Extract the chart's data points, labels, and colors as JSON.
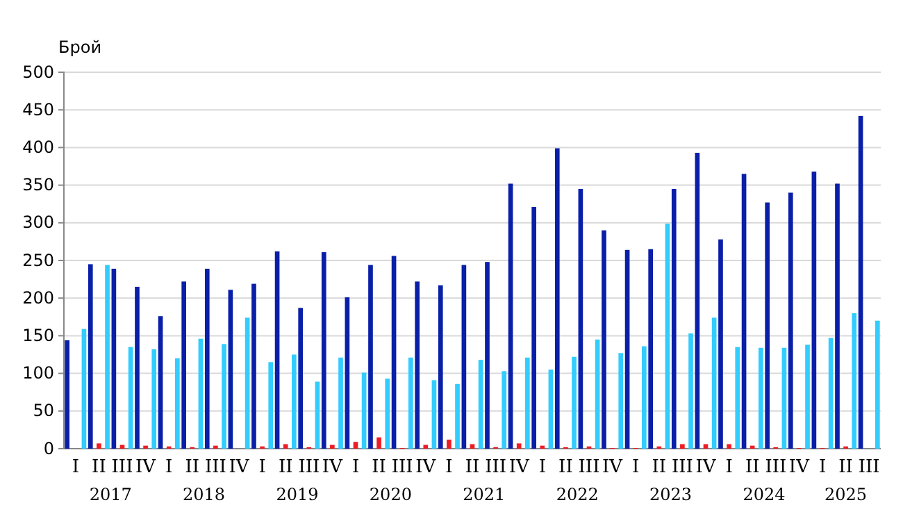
{
  "chart_data": {
    "type": "bar",
    "ylabel": "Брой",
    "categories": [
      "I",
      "II",
      "III",
      "IV",
      "I",
      "II",
      "III",
      "IV",
      "I",
      "II",
      "III",
      "IV",
      "I",
      "II",
      "III",
      "IV",
      "I",
      "II",
      "III",
      "IV",
      "I",
      "II",
      "III",
      "IV",
      "I",
      "II",
      "III",
      "IV",
      "I",
      "II",
      "III",
      "IV",
      "I",
      "II",
      "III"
    ],
    "series": [
      {
        "color": "#0a1fa8",
        "values": [
          144,
          245,
          239,
          215,
          176,
          222,
          239,
          211,
          219,
          262,
          187,
          261,
          201,
          244,
          256,
          222,
          217,
          244,
          248,
          352,
          321,
          399,
          345,
          290,
          264,
          265,
          345,
          393,
          278,
          365,
          327,
          340,
          368,
          352,
          442
        ]
      },
      {
        "color": "#ee1c25",
        "values": [
          0,
          7,
          5,
          4,
          3,
          2,
          4,
          0,
          3,
          6,
          2,
          5,
          9,
          15,
          1,
          5,
          12,
          6,
          2,
          7,
          4,
          2,
          3,
          1,
          1,
          3,
          6,
          6,
          6,
          4,
          2,
          1,
          1,
          3,
          0
        ]
      },
      {
        "color": "#33ccff",
        "values": [
          159,
          244,
          135,
          132,
          120,
          146,
          139,
          174,
          115,
          125,
          89,
          121,
          101,
          93,
          121,
          91,
          86,
          118,
          103,
          121,
          105,
          122,
          145,
          127,
          136,
          299,
          153,
          174,
          135,
          134,
          134,
          138,
          147,
          180,
          170
        ]
      }
    ],
    "annotations": [
      "2017",
      "2018",
      "2019",
      "2020",
      "2021",
      "2022",
      "2023",
      "2024",
      "2025"
    ],
    "ylim": [
      0,
      500
    ],
    "yticks": [
      0,
      50,
      100,
      150,
      200,
      250,
      300,
      350,
      400,
      450,
      500
    ],
    "grid": "y",
    "legend": false
  }
}
